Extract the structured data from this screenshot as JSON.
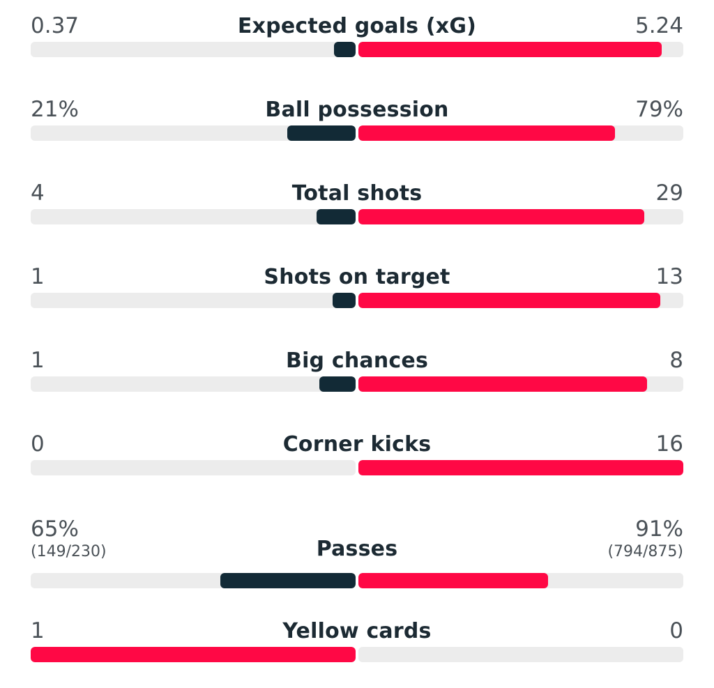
{
  "colors": {
    "home_bar": "#122a36",
    "away_bar": "#ff0845",
    "track": "#ececec"
  },
  "stats": [
    {
      "label": "Expected goals (xG)",
      "home": "0.37",
      "away": "5.24",
      "home_fill": 0.066,
      "away_fill": 0.934,
      "home_color": "home",
      "away_color": "away"
    },
    {
      "label": "Ball possession",
      "home": "21%",
      "away": "79%",
      "home_fill": 0.21,
      "away_fill": 0.79,
      "home_color": "home",
      "away_color": "away"
    },
    {
      "label": "Total shots",
      "home": "4",
      "away": "29",
      "home_fill": 0.121,
      "away_fill": 0.879,
      "home_color": "home",
      "away_color": "away"
    },
    {
      "label": "Shots on target",
      "home": "1",
      "away": "13",
      "home_fill": 0.071,
      "away_fill": 0.929,
      "home_color": "home",
      "away_color": "away"
    },
    {
      "label": "Big chances",
      "home": "1",
      "away": "8",
      "home_fill": 0.111,
      "away_fill": 0.889,
      "home_color": "home",
      "away_color": "away"
    },
    {
      "label": "Corner kicks",
      "home": "0",
      "away": "16",
      "home_fill": 0.0,
      "away_fill": 1.0,
      "home_color": "home",
      "away_color": "away"
    },
    {
      "label": "Passes",
      "home": "65%",
      "away": "91%",
      "home_sub": "(149/230)",
      "away_sub": "(794/875)",
      "home_fill": 0.417,
      "away_fill": 0.583,
      "home_color": "home",
      "away_color": "away"
    },
    {
      "label": "Yellow cards",
      "home": "1",
      "away": "0",
      "home_fill": 1.0,
      "away_fill": 0.0,
      "home_color": "away",
      "away_color": "away"
    }
  ]
}
